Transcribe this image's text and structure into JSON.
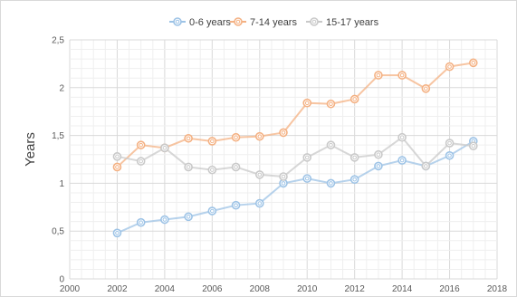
{
  "chart_data": {
    "type": "line",
    "title": "",
    "xlabel": "",
    "ylabel": "Years",
    "xlim": [
      2000,
      2018
    ],
    "ylim": [
      0,
      2.5
    ],
    "x_ticks": [
      "2000",
      "2002",
      "2004",
      "2006",
      "2008",
      "2010",
      "2012",
      "2014",
      "2016",
      "2018"
    ],
    "y_ticks": [
      "0",
      "0,5",
      "1",
      "1,5",
      "2",
      "2,5"
    ],
    "grid": true,
    "legend_position": "top-center",
    "x": [
      2002,
      2003,
      2004,
      2005,
      2006,
      2007,
      2008,
      2009,
      2010,
      2011,
      2012,
      2013,
      2014,
      2015,
      2016,
      2017
    ],
    "series": [
      {
        "name": "0-6 years",
        "color": "#9dc3e6",
        "values": [
          0.48,
          0.59,
          0.62,
          0.65,
          0.71,
          0.77,
          0.79,
          1.0,
          1.05,
          1.0,
          1.04,
          1.18,
          1.24,
          1.18,
          1.29,
          1.44
        ]
      },
      {
        "name": "7-14 years",
        "color": "#f4b183",
        "values": [
          1.17,
          1.4,
          1.37,
          1.47,
          1.44,
          1.48,
          1.49,
          1.53,
          1.84,
          1.83,
          1.88,
          2.13,
          2.13,
          1.99,
          2.22,
          2.26
        ]
      },
      {
        "name": "15-17 years",
        "color": "#c9c9c9",
        "values": [
          1.28,
          1.23,
          1.37,
          1.17,
          1.14,
          1.17,
          1.09,
          1.07,
          1.27,
          1.4,
          1.27,
          1.3,
          1.48,
          1.18,
          1.42,
          1.39
        ]
      }
    ]
  }
}
